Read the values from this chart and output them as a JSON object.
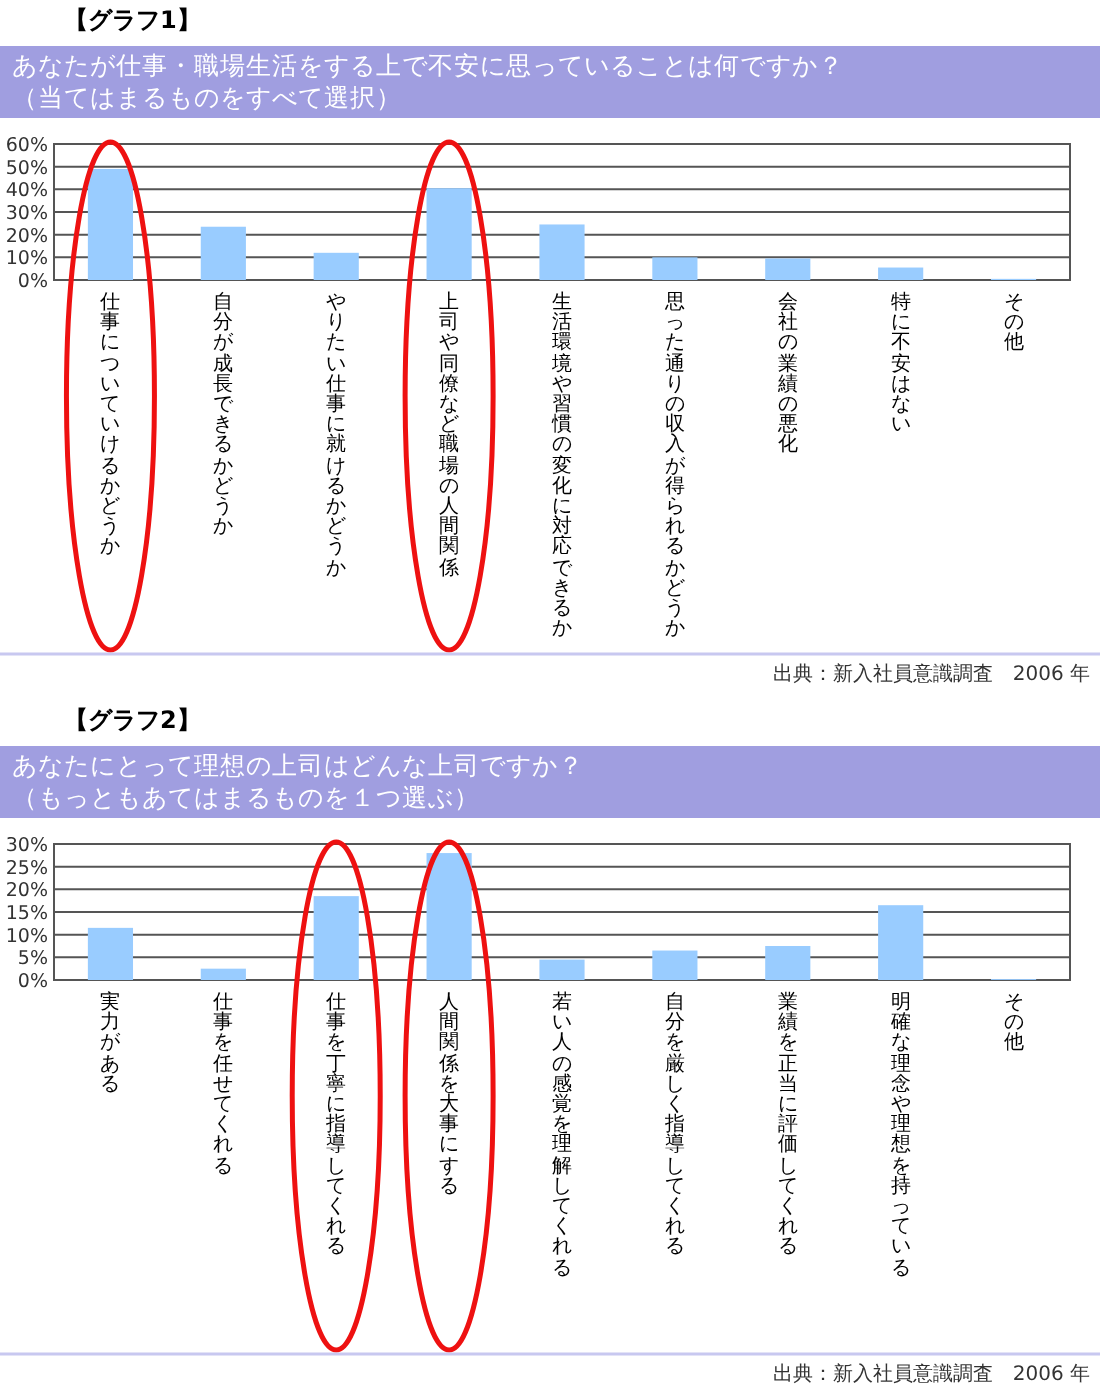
{
  "chart_data": [
    {
      "type": "bar",
      "title": "【グラフ1】",
      "subtitle": "あなたが仕事・職場生活をする上で不安に思っていることは何ですか？",
      "annotations": [
        "（当てはまるものをすべて選択）",
        "出典：新入社員意識調査　2006 年"
      ],
      "categories": [
        "仕事についていけるかどうか",
        "自分が成長できるかどうか",
        "やりたい仕事に就けるかどうか",
        "上司や同僚など職場の人間関係",
        "生活環境や習慣の変化に対応できるか",
        "思った通りの収入が得られるかどうか",
        "会社の業績の悪化",
        "特に不安はない",
        "その他"
      ],
      "values": [
        49,
        23.5,
        12,
        40.5,
        24.5,
        10,
        9.5,
        5.5,
        0.5
      ],
      "color": "#99ccff",
      "ylim": [
        0,
        60
      ],
      "yticks": [
        {
          "value": 0,
          "label": "0%"
        },
        {
          "value": 10,
          "label": "10%"
        },
        {
          "value": 20,
          "label": "20%"
        },
        {
          "value": 30,
          "label": "30%"
        },
        {
          "value": 40,
          "label": "40%"
        },
        {
          "value": 50,
          "label": "50%"
        },
        {
          "value": 60,
          "label": "60%"
        }
      ],
      "grid": "y"
    },
    {
      "type": "bar",
      "title": "【グラフ2】",
      "subtitle": "あなたにとって理想の上司はどんな上司ですか？",
      "annotations": [
        "（もっともあてはまるものを１つ選ぶ）",
        "出典：新入社員意識調査　2006 年"
      ],
      "categories": [
        "実力がある",
        "仕事を任せてくれる",
        "仕事を丁寧に指導してくれる",
        "人間関係を大事にする",
        "若い人の感覚を理解してくれる",
        "自分を厳しく指導してくれる",
        "業績を正当に評価してくれる",
        "明確な理念や理想を持っている",
        "その他"
      ],
      "values": [
        11.5,
        2.5,
        18.5,
        28,
        4.5,
        6.5,
        7.5,
        16.5,
        0.2
      ],
      "color": "#99ccff",
      "ylim": [
        0,
        30
      ],
      "yticks": [
        {
          "value": 0,
          "label": "0%"
        },
        {
          "value": 5,
          "label": "5%"
        },
        {
          "value": 10,
          "label": "10%"
        },
        {
          "value": 15,
          "label": "15%"
        },
        {
          "value": 20,
          "label": "20%"
        },
        {
          "value": 25,
          "label": "25%"
        },
        {
          "value": 30,
          "label": "30%"
        }
      ],
      "grid": "y"
    }
  ]
}
